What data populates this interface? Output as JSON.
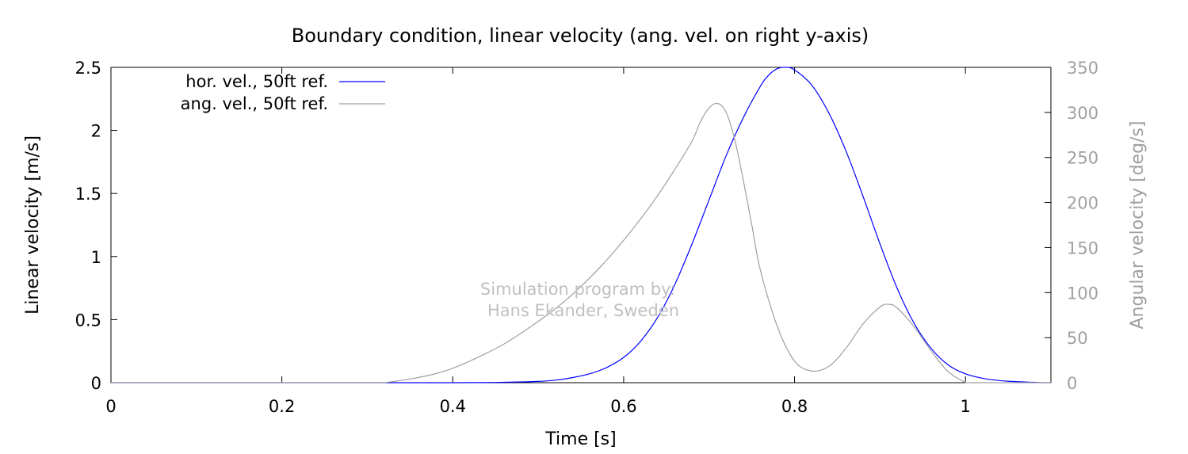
{
  "chart_data": {
    "type": "line",
    "title": "Boundary condition, linear velocity (ang. vel. on right y-axis)",
    "xlabel": "Time [s]",
    "ylabel": "Linear velocity [m/s]",
    "y2label": "Angular velocity [deg/s]",
    "xlim": [
      0,
      1.1
    ],
    "ylim": [
      0,
      2.5
    ],
    "y2lim": [
      0,
      350
    ],
    "xticks": [
      0,
      0.2,
      0.4,
      0.6,
      0.8,
      1
    ],
    "xtick_labels": [
      "0",
      "0.2",
      "0.4",
      "0.6",
      "0.8",
      "1"
    ],
    "yticks": [
      0,
      0.5,
      1,
      1.5,
      2,
      2.5
    ],
    "ytick_labels": [
      "0",
      "0.5",
      "1",
      "1.5",
      "2",
      "2.5"
    ],
    "y2ticks": [
      0,
      50,
      100,
      150,
      200,
      250,
      300,
      350
    ],
    "y2tick_labels": [
      "0",
      "50",
      "100",
      "150",
      "200",
      "250",
      "300",
      "350"
    ],
    "grid": false,
    "legend_position": "top-left",
    "series": [
      {
        "name": "hor. vel., 50ft ref.",
        "axis": "left",
        "color": "#0000ff",
        "x": [
          0.4,
          0.45,
          0.5,
          0.52,
          0.54,
          0.56,
          0.58,
          0.6,
          0.62,
          0.64,
          0.66,
          0.68,
          0.7,
          0.72,
          0.74,
          0.76,
          0.77,
          0.78,
          0.79,
          0.8,
          0.82,
          0.84,
          0.86,
          0.88,
          0.9,
          0.92,
          0.94,
          0.96,
          0.98,
          1.0,
          1.02,
          1.04,
          1.06,
          1.08,
          1.09
        ],
        "y": [
          0.0,
          0.002,
          0.01,
          0.02,
          0.04,
          0.07,
          0.12,
          0.2,
          0.33,
          0.52,
          0.78,
          1.1,
          1.45,
          1.8,
          2.1,
          2.35,
          2.44,
          2.49,
          2.5,
          2.48,
          2.36,
          2.14,
          1.84,
          1.48,
          1.1,
          0.75,
          0.47,
          0.27,
          0.14,
          0.07,
          0.035,
          0.017,
          0.008,
          0.003,
          0.0
        ]
      },
      {
        "name": "ang. vel., 50ft ref.",
        "axis": "right",
        "color": "#a0a0a0",
        "x": [
          0.32,
          0.35,
          0.38,
          0.4,
          0.42,
          0.44,
          0.46,
          0.48,
          0.5,
          0.52,
          0.54,
          0.56,
          0.58,
          0.6,
          0.62,
          0.64,
          0.66,
          0.68,
          0.69,
          0.7,
          0.71,
          0.72,
          0.73,
          0.74,
          0.75,
          0.76,
          0.78,
          0.8,
          0.82,
          0.84,
          0.86,
          0.88,
          0.9,
          0.91,
          0.92,
          0.94,
          0.96,
          0.98,
          1.0
        ],
        "y": [
          0,
          4,
          10,
          16,
          24,
          33,
          43,
          55,
          68,
          82,
          98,
          116,
          136,
          158,
          182,
          208,
          237,
          268,
          290,
          305,
          310,
          300,
          270,
          225,
          175,
          125,
          62,
          24,
          13,
          18,
          38,
          65,
          84,
          87,
          83,
          62,
          35,
          12,
          0
        ]
      }
    ],
    "annotation": [
      "Simulation program by:",
      "Hans Ekander, Sweden"
    ]
  },
  "colors": {
    "axis": "#000000",
    "right_axis": "#a0a0a0",
    "watermark": "#c0c0c0"
  }
}
